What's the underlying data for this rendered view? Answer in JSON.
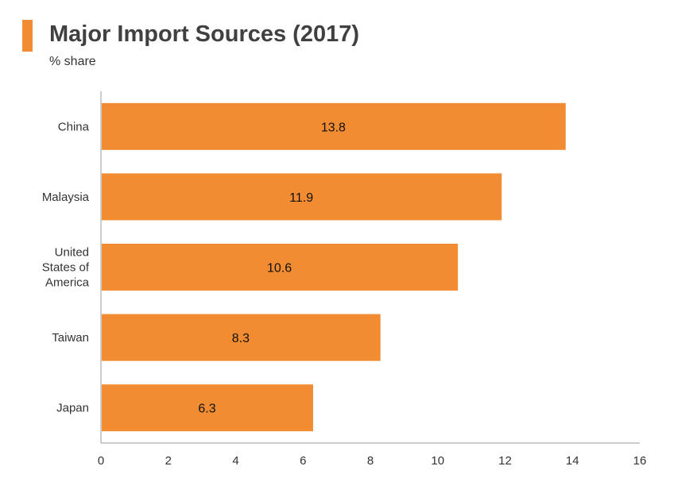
{
  "header": {
    "title": "Major Import Sources (2017)",
    "subtitle": "% share"
  },
  "colors": {
    "accent": "#f28c33",
    "bar": "#f28c33",
    "axis": "#999999"
  },
  "chart_data": {
    "type": "bar",
    "orientation": "horizontal",
    "title": "Major Import Sources (2017)",
    "subtitle": "% share",
    "categories": [
      [
        "China"
      ],
      [
        "Malaysia"
      ],
      [
        "United",
        "States of",
        "America"
      ],
      [
        "Taiwan"
      ],
      [
        "Japan"
      ]
    ],
    "values": [
      13.8,
      11.9,
      10.6,
      8.3,
      6.3
    ],
    "value_labels": [
      "13.8",
      "11.9",
      "10.6",
      "8.3",
      "6.3"
    ],
    "xlim": [
      0,
      16
    ],
    "xticks": [
      "0",
      "2",
      "4",
      "6",
      "8",
      "10",
      "12",
      "14",
      "16"
    ],
    "xlabel": "",
    "ylabel": "",
    "grid": false,
    "legend": "none"
  }
}
